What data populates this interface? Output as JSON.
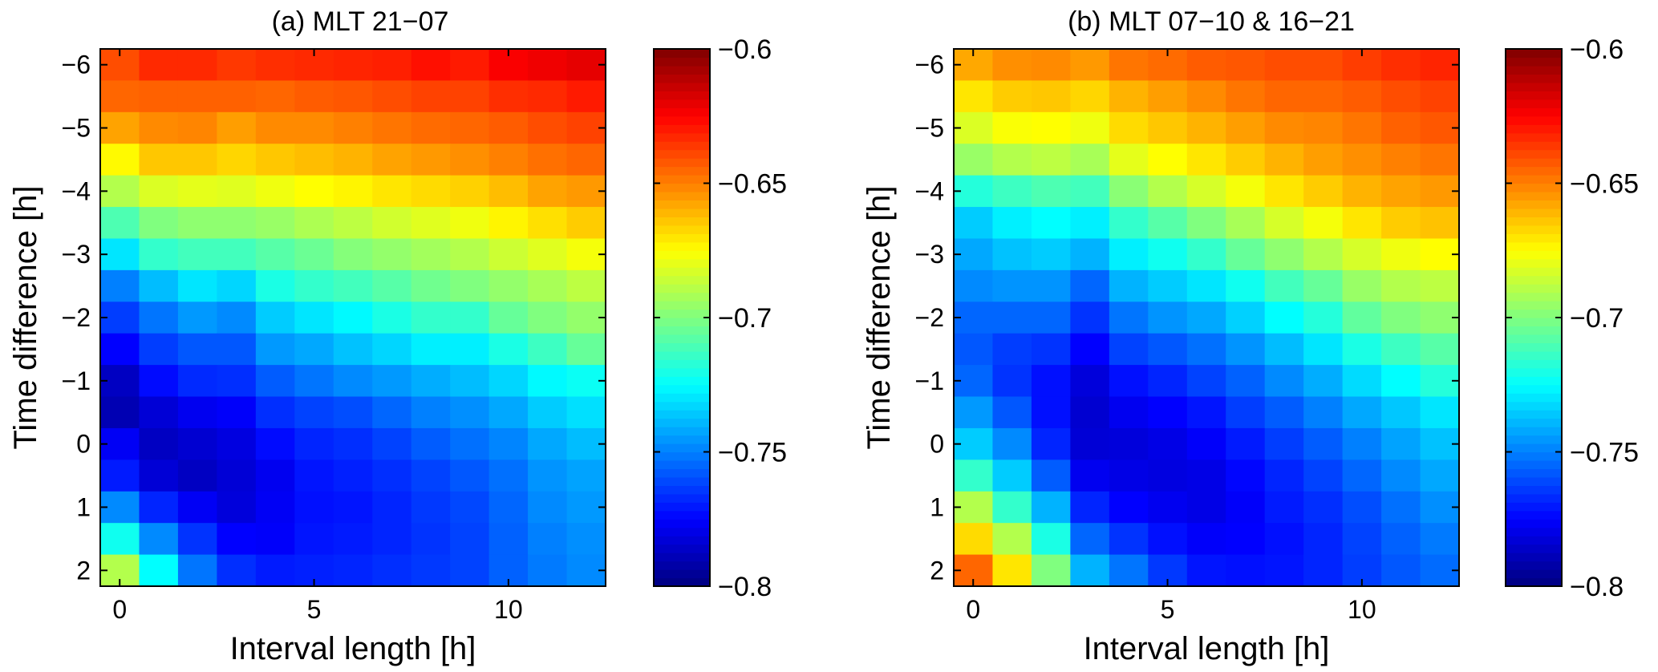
{
  "chart_data": [
    {
      "type": "heatmap",
      "title": "(a) MLT 21−07",
      "xlabel": "Interval length [h]",
      "ylabel": "Time difference [h]",
      "x": [
        0,
        1,
        2,
        3,
        4,
        5,
        6,
        7,
        8,
        9,
        10,
        11,
        12
      ],
      "y": [
        -6,
        -5.5,
        -5,
        -4.5,
        -4,
        -3.5,
        -3,
        -2.5,
        -2,
        -1.5,
        -1,
        -0.5,
        0,
        0.5,
        1,
        1.5,
        2
      ],
      "xlim": [
        -0.5,
        12.5
      ],
      "ylim": [
        -6.25,
        2.25
      ],
      "y_reversed": true,
      "xticks": [
        0,
        5,
        10
      ],
      "xtick_labels": [
        "0",
        "5",
        "10"
      ],
      "yticks": [
        -6,
        -5,
        -4,
        -3,
        -2,
        -1,
        0,
        1,
        2
      ],
      "ytick_labels": [
        "−6",
        "−5",
        "−4",
        "−3",
        "−2",
        "−1",
        "0",
        "1",
        "2"
      ],
      "grid": false,
      "colormap": "jet",
      "colorbar": {
        "min": -0.8,
        "max": -0.6,
        "ticks": [
          -0.6,
          -0.65,
          -0.7,
          -0.75,
          -0.8
        ],
        "tick_labels": [
          "−0.6",
          "−0.65",
          "−0.7",
          "−0.75",
          "−0.8"
        ]
      },
      "values": [
        [
          -0.64,
          -0.633,
          -0.633,
          -0.636,
          -0.634,
          -0.633,
          -0.632,
          -0.631,
          -0.628,
          -0.63,
          -0.624,
          -0.622,
          -0.62
        ],
        [
          -0.645,
          -0.644,
          -0.644,
          -0.644,
          -0.645,
          -0.643,
          -0.642,
          -0.64,
          -0.638,
          -0.638,
          -0.634,
          -0.633,
          -0.63
        ],
        [
          -0.657,
          -0.652,
          -0.651,
          -0.656,
          -0.652,
          -0.652,
          -0.65,
          -0.648,
          -0.646,
          -0.645,
          -0.643,
          -0.64,
          -0.638
        ],
        [
          -0.674,
          -0.664,
          -0.664,
          -0.667,
          -0.664,
          -0.662,
          -0.66,
          -0.657,
          -0.655,
          -0.653,
          -0.65,
          -0.647,
          -0.645
        ],
        [
          -0.69,
          -0.682,
          -0.68,
          -0.681,
          -0.678,
          -0.675,
          -0.673,
          -0.67,
          -0.668,
          -0.666,
          -0.662,
          -0.657,
          -0.655
        ],
        [
          -0.71,
          -0.7,
          -0.697,
          -0.697,
          -0.695,
          -0.691,
          -0.688,
          -0.684,
          -0.681,
          -0.678,
          -0.673,
          -0.669,
          -0.665
        ],
        [
          -0.73,
          -0.715,
          -0.712,
          -0.712,
          -0.708,
          -0.704,
          -0.699,
          -0.696,
          -0.693,
          -0.69,
          -0.685,
          -0.681,
          -0.677
        ],
        [
          -0.75,
          -0.738,
          -0.73,
          -0.733,
          -0.72,
          -0.715,
          -0.712,
          -0.708,
          -0.703,
          -0.7,
          -0.696,
          -0.692,
          -0.688
        ],
        [
          -0.763,
          -0.752,
          -0.745,
          -0.748,
          -0.735,
          -0.73,
          -0.726,
          -0.72,
          -0.715,
          -0.715,
          -0.705,
          -0.7,
          -0.696
        ],
        [
          -0.775,
          -0.763,
          -0.758,
          -0.758,
          -0.745,
          -0.742,
          -0.737,
          -0.733,
          -0.728,
          -0.728,
          -0.72,
          -0.713,
          -0.705
        ],
        [
          -0.787,
          -0.773,
          -0.767,
          -0.766,
          -0.757,
          -0.752,
          -0.748,
          -0.745,
          -0.741,
          -0.738,
          -0.733,
          -0.726,
          -0.723
        ],
        [
          -0.79,
          -0.783,
          -0.778,
          -0.776,
          -0.766,
          -0.762,
          -0.76,
          -0.755,
          -0.75,
          -0.747,
          -0.742,
          -0.735,
          -0.731
        ],
        [
          -0.777,
          -0.787,
          -0.784,
          -0.781,
          -0.773,
          -0.768,
          -0.766,
          -0.762,
          -0.757,
          -0.753,
          -0.749,
          -0.742,
          -0.738
        ],
        [
          -0.77,
          -0.783,
          -0.787,
          -0.783,
          -0.778,
          -0.771,
          -0.769,
          -0.766,
          -0.762,
          -0.758,
          -0.753,
          -0.746,
          -0.743
        ],
        [
          -0.748,
          -0.768,
          -0.777,
          -0.782,
          -0.777,
          -0.772,
          -0.771,
          -0.768,
          -0.764,
          -0.761,
          -0.755,
          -0.748,
          -0.745
        ],
        [
          -0.722,
          -0.748,
          -0.765,
          -0.775,
          -0.776,
          -0.771,
          -0.77,
          -0.768,
          -0.765,
          -0.762,
          -0.756,
          -0.75,
          -0.747
        ],
        [
          -0.69,
          -0.725,
          -0.752,
          -0.766,
          -0.77,
          -0.769,
          -0.768,
          -0.766,
          -0.764,
          -0.762,
          -0.756,
          -0.751,
          -0.748
        ]
      ]
    },
    {
      "type": "heatmap",
      "title": "(b) MLT 07−10 & 16−21",
      "xlabel": "Interval length [h]",
      "ylabel": "Time difference [h]",
      "x": [
        0,
        1,
        2,
        3,
        4,
        5,
        6,
        7,
        8,
        9,
        10,
        11,
        12
      ],
      "y": [
        -6,
        -5.5,
        -5,
        -4.5,
        -4,
        -3.5,
        -3,
        -2.5,
        -2,
        -1.5,
        -1,
        -0.5,
        0,
        0.5,
        1,
        1.5,
        2
      ],
      "xlim": [
        -0.5,
        12.5
      ],
      "ylim": [
        -6.25,
        2.25
      ],
      "y_reversed": true,
      "xticks": [
        0,
        5,
        10
      ],
      "xtick_labels": [
        "0",
        "5",
        "10"
      ],
      "yticks": [
        -6,
        -5,
        -4,
        -3,
        -2,
        -1,
        0,
        1,
        2
      ],
      "ytick_labels": [
        "−6",
        "−5",
        "−4",
        "−3",
        "−2",
        "−1",
        "0",
        "1",
        "2"
      ],
      "grid": false,
      "colormap": "jet",
      "colorbar": {
        "min": -0.8,
        "max": -0.6,
        "ticks": [
          -0.6,
          -0.65,
          -0.7,
          -0.75,
          -0.8
        ],
        "tick_labels": [
          "−0.6",
          "−0.65",
          "−0.7",
          "−0.75",
          "−0.8"
        ]
      },
      "values": [
        [
          -0.658,
          -0.653,
          -0.652,
          -0.655,
          -0.648,
          -0.646,
          -0.643,
          -0.642,
          -0.64,
          -0.64,
          -0.637,
          -0.634,
          -0.632
        ],
        [
          -0.67,
          -0.665,
          -0.664,
          -0.667,
          -0.66,
          -0.656,
          -0.652,
          -0.648,
          -0.645,
          -0.645,
          -0.643,
          -0.64,
          -0.638
        ],
        [
          -0.682,
          -0.676,
          -0.675,
          -0.678,
          -0.668,
          -0.664,
          -0.66,
          -0.656,
          -0.652,
          -0.651,
          -0.648,
          -0.644,
          -0.642
        ],
        [
          -0.695,
          -0.69,
          -0.688,
          -0.692,
          -0.68,
          -0.675,
          -0.67,
          -0.665,
          -0.66,
          -0.656,
          -0.653,
          -0.65,
          -0.648
        ],
        [
          -0.718,
          -0.713,
          -0.71,
          -0.712,
          -0.698,
          -0.69,
          -0.683,
          -0.677,
          -0.67,
          -0.665,
          -0.66,
          -0.657,
          -0.655
        ],
        [
          -0.735,
          -0.728,
          -0.725,
          -0.728,
          -0.715,
          -0.708,
          -0.7,
          -0.692,
          -0.683,
          -0.677,
          -0.67,
          -0.665,
          -0.663
        ],
        [
          -0.742,
          -0.737,
          -0.735,
          -0.74,
          -0.728,
          -0.722,
          -0.715,
          -0.705,
          -0.697,
          -0.69,
          -0.683,
          -0.678,
          -0.675
        ],
        [
          -0.748,
          -0.746,
          -0.746,
          -0.755,
          -0.74,
          -0.735,
          -0.73,
          -0.722,
          -0.712,
          -0.705,
          -0.695,
          -0.69,
          -0.688
        ],
        [
          -0.755,
          -0.755,
          -0.755,
          -0.765,
          -0.752,
          -0.746,
          -0.742,
          -0.734,
          -0.725,
          -0.718,
          -0.706,
          -0.7,
          -0.697
        ],
        [
          -0.758,
          -0.763,
          -0.765,
          -0.775,
          -0.762,
          -0.758,
          -0.753,
          -0.746,
          -0.738,
          -0.73,
          -0.72,
          -0.713,
          -0.708
        ],
        [
          -0.755,
          -0.765,
          -0.772,
          -0.782,
          -0.772,
          -0.768,
          -0.762,
          -0.756,
          -0.748,
          -0.741,
          -0.732,
          -0.725,
          -0.718
        ],
        [
          -0.745,
          -0.758,
          -0.772,
          -0.784,
          -0.778,
          -0.775,
          -0.771,
          -0.763,
          -0.757,
          -0.75,
          -0.742,
          -0.736,
          -0.73
        ],
        [
          -0.735,
          -0.748,
          -0.768,
          -0.783,
          -0.782,
          -0.78,
          -0.776,
          -0.77,
          -0.763,
          -0.757,
          -0.75,
          -0.743,
          -0.737
        ],
        [
          -0.715,
          -0.735,
          -0.757,
          -0.778,
          -0.78,
          -0.781,
          -0.78,
          -0.774,
          -0.768,
          -0.762,
          -0.755,
          -0.748,
          -0.742
        ],
        [
          -0.69,
          -0.715,
          -0.74,
          -0.768,
          -0.775,
          -0.778,
          -0.78,
          -0.776,
          -0.77,
          -0.766,
          -0.76,
          -0.753,
          -0.747
        ],
        [
          -0.668,
          -0.69,
          -0.72,
          -0.755,
          -0.765,
          -0.772,
          -0.776,
          -0.775,
          -0.772,
          -0.768,
          -0.762,
          -0.756,
          -0.751
        ],
        [
          -0.645,
          -0.67,
          -0.7,
          -0.74,
          -0.752,
          -0.764,
          -0.771,
          -0.772,
          -0.771,
          -0.768,
          -0.763,
          -0.758,
          -0.754
        ]
      ]
    }
  ]
}
